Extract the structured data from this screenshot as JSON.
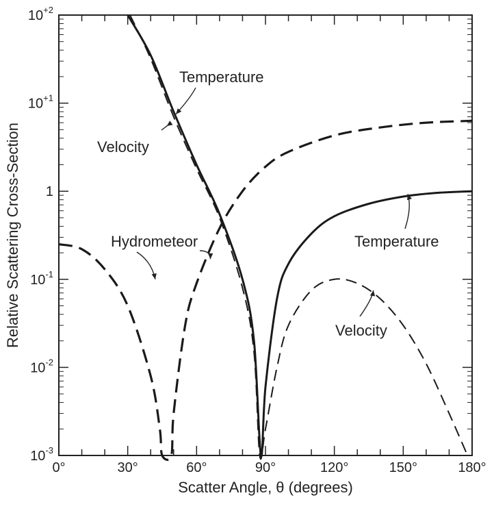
{
  "chart_data": {
    "type": "line",
    "title": "",
    "xlabel": "Scatter Angle, θ (degrees)",
    "ylabel": "Relative Scattering Cross-Section",
    "xlim": [
      0,
      180
    ],
    "ylim": [
      0.001,
      100
    ],
    "yscale": "log",
    "grid": false,
    "x_ticks": [
      "0°",
      "30°",
      "60°",
      "90°",
      "120°",
      "150°",
      "180°"
    ],
    "y_ticks": [
      {
        "base": "10",
        "exp": "-3"
      },
      {
        "base": "10",
        "exp": "-2"
      },
      {
        "base": "10",
        "exp": "-1"
      },
      {
        "base": "1",
        "exp": ""
      },
      {
        "base": "10",
        "exp": "+1"
      },
      {
        "base": "10",
        "exp": "+2"
      }
    ],
    "series": [
      {
        "name": "Temperature",
        "style": "solid",
        "x": [
          30,
          40,
          50,
          60,
          70,
          80,
          85,
          88,
          90,
          95,
          100,
          110,
          120,
          135,
          150,
          165,
          180
        ],
        "y": [
          100,
          35,
          8,
          2.0,
          0.55,
          0.1,
          0.02,
          0.001,
          0.006,
          0.06,
          0.15,
          0.33,
          0.52,
          0.72,
          0.87,
          0.96,
          1.0
        ]
      },
      {
        "name": "Velocity",
        "style": "dashed",
        "x": [
          31,
          40,
          50,
          60,
          70,
          80,
          85,
          87.5,
          90,
          95,
          100,
          110,
          120,
          130,
          140,
          150,
          160,
          170,
          178
        ],
        "y": [
          100,
          32,
          7,
          1.8,
          0.5,
          0.08,
          0.015,
          0.001,
          0.002,
          0.01,
          0.03,
          0.075,
          0.1,
          0.09,
          0.06,
          0.03,
          0.011,
          0.003,
          0.001
        ]
      },
      {
        "name": "Hydrometeor",
        "style": "dashed",
        "x": [
          0,
          10,
          20,
          30,
          40,
          44,
          45,
          49,
          50,
          55,
          60,
          70,
          80,
          90,
          100,
          120,
          140,
          160,
          180
        ],
        "y": [
          0.25,
          0.22,
          0.13,
          0.05,
          0.008,
          0.002,
          0.001,
          0.001,
          0.003,
          0.03,
          0.09,
          0.38,
          1.0,
          1.9,
          2.8,
          4.3,
          5.3,
          6.0,
          6.3
        ]
      }
    ],
    "annotations": [
      {
        "text": "Temperature",
        "target_x": 51,
        "target_y": 7.5
      },
      {
        "text": "Velocity",
        "target_x": 47,
        "target_y": 5.5
      },
      {
        "text": "Hydrometeor",
        "target_x": 42,
        "target_y": 0.1
      },
      {
        "text": "Hydrometeor",
        "target_x": 66,
        "target_y": 0.17
      },
      {
        "text": "Temperature",
        "target_x": 152,
        "target_y": 0.93
      },
      {
        "text": "Velocity",
        "target_x": 137,
        "target_y": 0.075
      }
    ]
  }
}
